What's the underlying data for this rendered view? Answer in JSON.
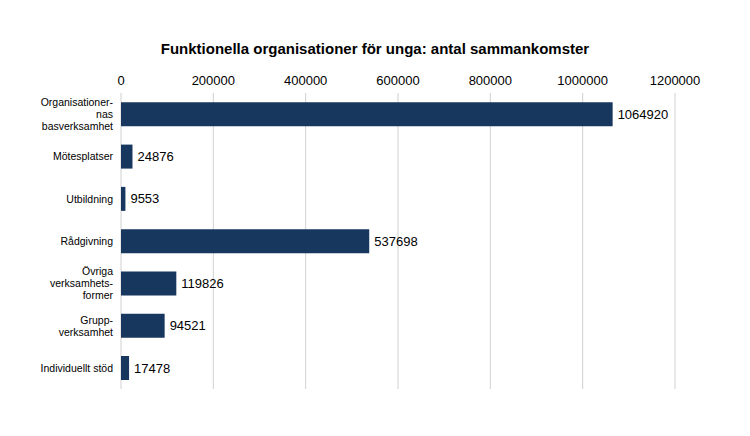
{
  "chart_data": {
    "type": "bar",
    "title": "Funktionella organisationer för unga: antal sammankomster",
    "orientation": "horizontal",
    "categories": [
      "Organisationer-\nnas\nbasverksamhet",
      "Mötesplatser",
      "Utbildning",
      "Rådgivning",
      "Övriga\nverksamhets-\nformer",
      "Grupp-\nverksamhet",
      "Individuellt stöd"
    ],
    "values": [
      1064920,
      24876,
      9553,
      537698,
      119826,
      94521,
      17478
    ],
    "color": "#17375e",
    "xlim": [
      0,
      1200000
    ],
    "xticks": [
      0,
      200000,
      400000,
      600000,
      800000,
      1000000,
      1200000
    ],
    "grid": true,
    "data_labels": true
  }
}
